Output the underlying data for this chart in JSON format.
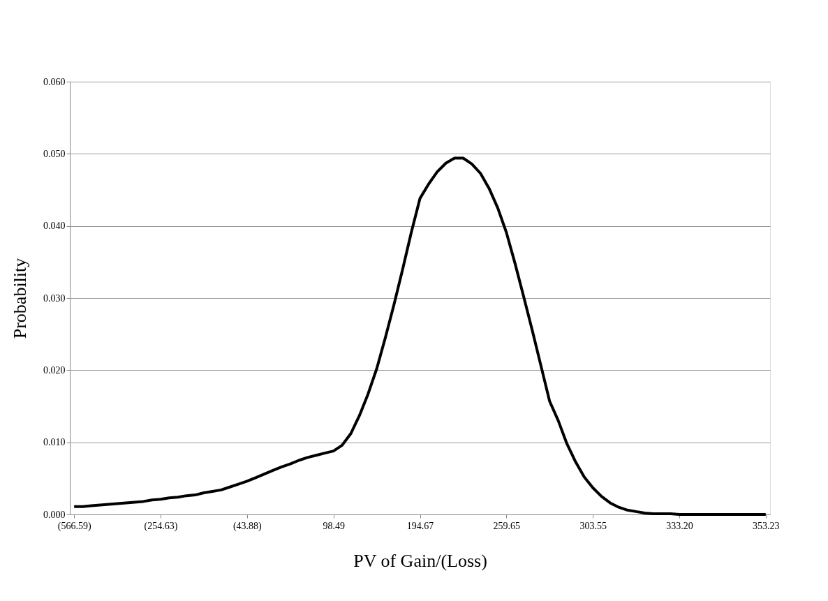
{
  "chart_data": {
    "type": "line",
    "xlabel": "PV of Gain/(Loss)",
    "ylabel": "Probability",
    "categories": [
      "(566.59)",
      null,
      null,
      null,
      null,
      null,
      null,
      null,
      null,
      null,
      "(254.63)",
      null,
      null,
      null,
      null,
      null,
      null,
      null,
      null,
      null,
      "(43.88)",
      null,
      null,
      null,
      null,
      null,
      null,
      null,
      null,
      null,
      "98.49",
      null,
      null,
      null,
      null,
      null,
      null,
      null,
      null,
      null,
      "194.67",
      null,
      null,
      null,
      null,
      null,
      null,
      null,
      null,
      null,
      "259.65",
      null,
      null,
      null,
      null,
      null,
      null,
      null,
      null,
      null,
      "303.55",
      null,
      null,
      null,
      null,
      null,
      null,
      null,
      null,
      null,
      "333.20",
      null,
      null,
      null,
      null,
      null,
      null,
      null,
      null,
      null,
      "353.23"
    ],
    "series": [
      {
        "color": "#000000",
        "values": [
          0.0011,
          0.0011,
          0.0012,
          0.0013,
          0.0014,
          0.0015,
          0.0016,
          0.0017,
          0.0018,
          0.002,
          0.0021,
          0.0023,
          0.0024,
          0.0026,
          0.0027,
          0.003,
          0.0032,
          0.0034,
          0.0038,
          0.0042,
          0.0046,
          0.0051,
          0.0056,
          0.0061,
          0.0066,
          0.007,
          0.0075,
          0.0079,
          0.0082,
          0.0085,
          0.0088,
          0.0096,
          0.0112,
          0.0137,
          0.0167,
          0.0202,
          0.0245,
          0.0291,
          0.034,
          0.0391,
          0.0438,
          0.0458,
          0.0475,
          0.0487,
          0.0494,
          0.0494,
          0.0486,
          0.0473,
          0.0452,
          0.0425,
          0.0391,
          0.0348,
          0.0302,
          0.0255,
          0.0206,
          0.0157,
          0.013,
          0.0098,
          0.0073,
          0.0052,
          0.0037,
          0.0025,
          0.0016,
          0.001,
          0.0006,
          0.0004,
          0.0002,
          0.0001,
          0.0001,
          0.0001,
          0.0,
          0.0,
          0.0,
          0.0,
          0.0,
          0.0,
          0.0,
          0.0,
          0.0,
          0.0,
          0.0
        ]
      }
    ],
    "ylim": [
      0,
      0.06
    ],
    "yticks": [
      {
        "value": 0,
        "label": "0.000"
      },
      {
        "value": 0.01,
        "label": "0.010"
      },
      {
        "value": 0.02,
        "label": "0.020"
      },
      {
        "value": 0.03,
        "label": "0.030"
      },
      {
        "value": 0.04,
        "label": "0.040"
      },
      {
        "value": 0.05,
        "label": "0.050"
      },
      {
        "value": 0.06,
        "label": "0.060"
      }
    ],
    "grid": "y",
    "legend": false,
    "marker": "none",
    "line_style": "solid"
  }
}
